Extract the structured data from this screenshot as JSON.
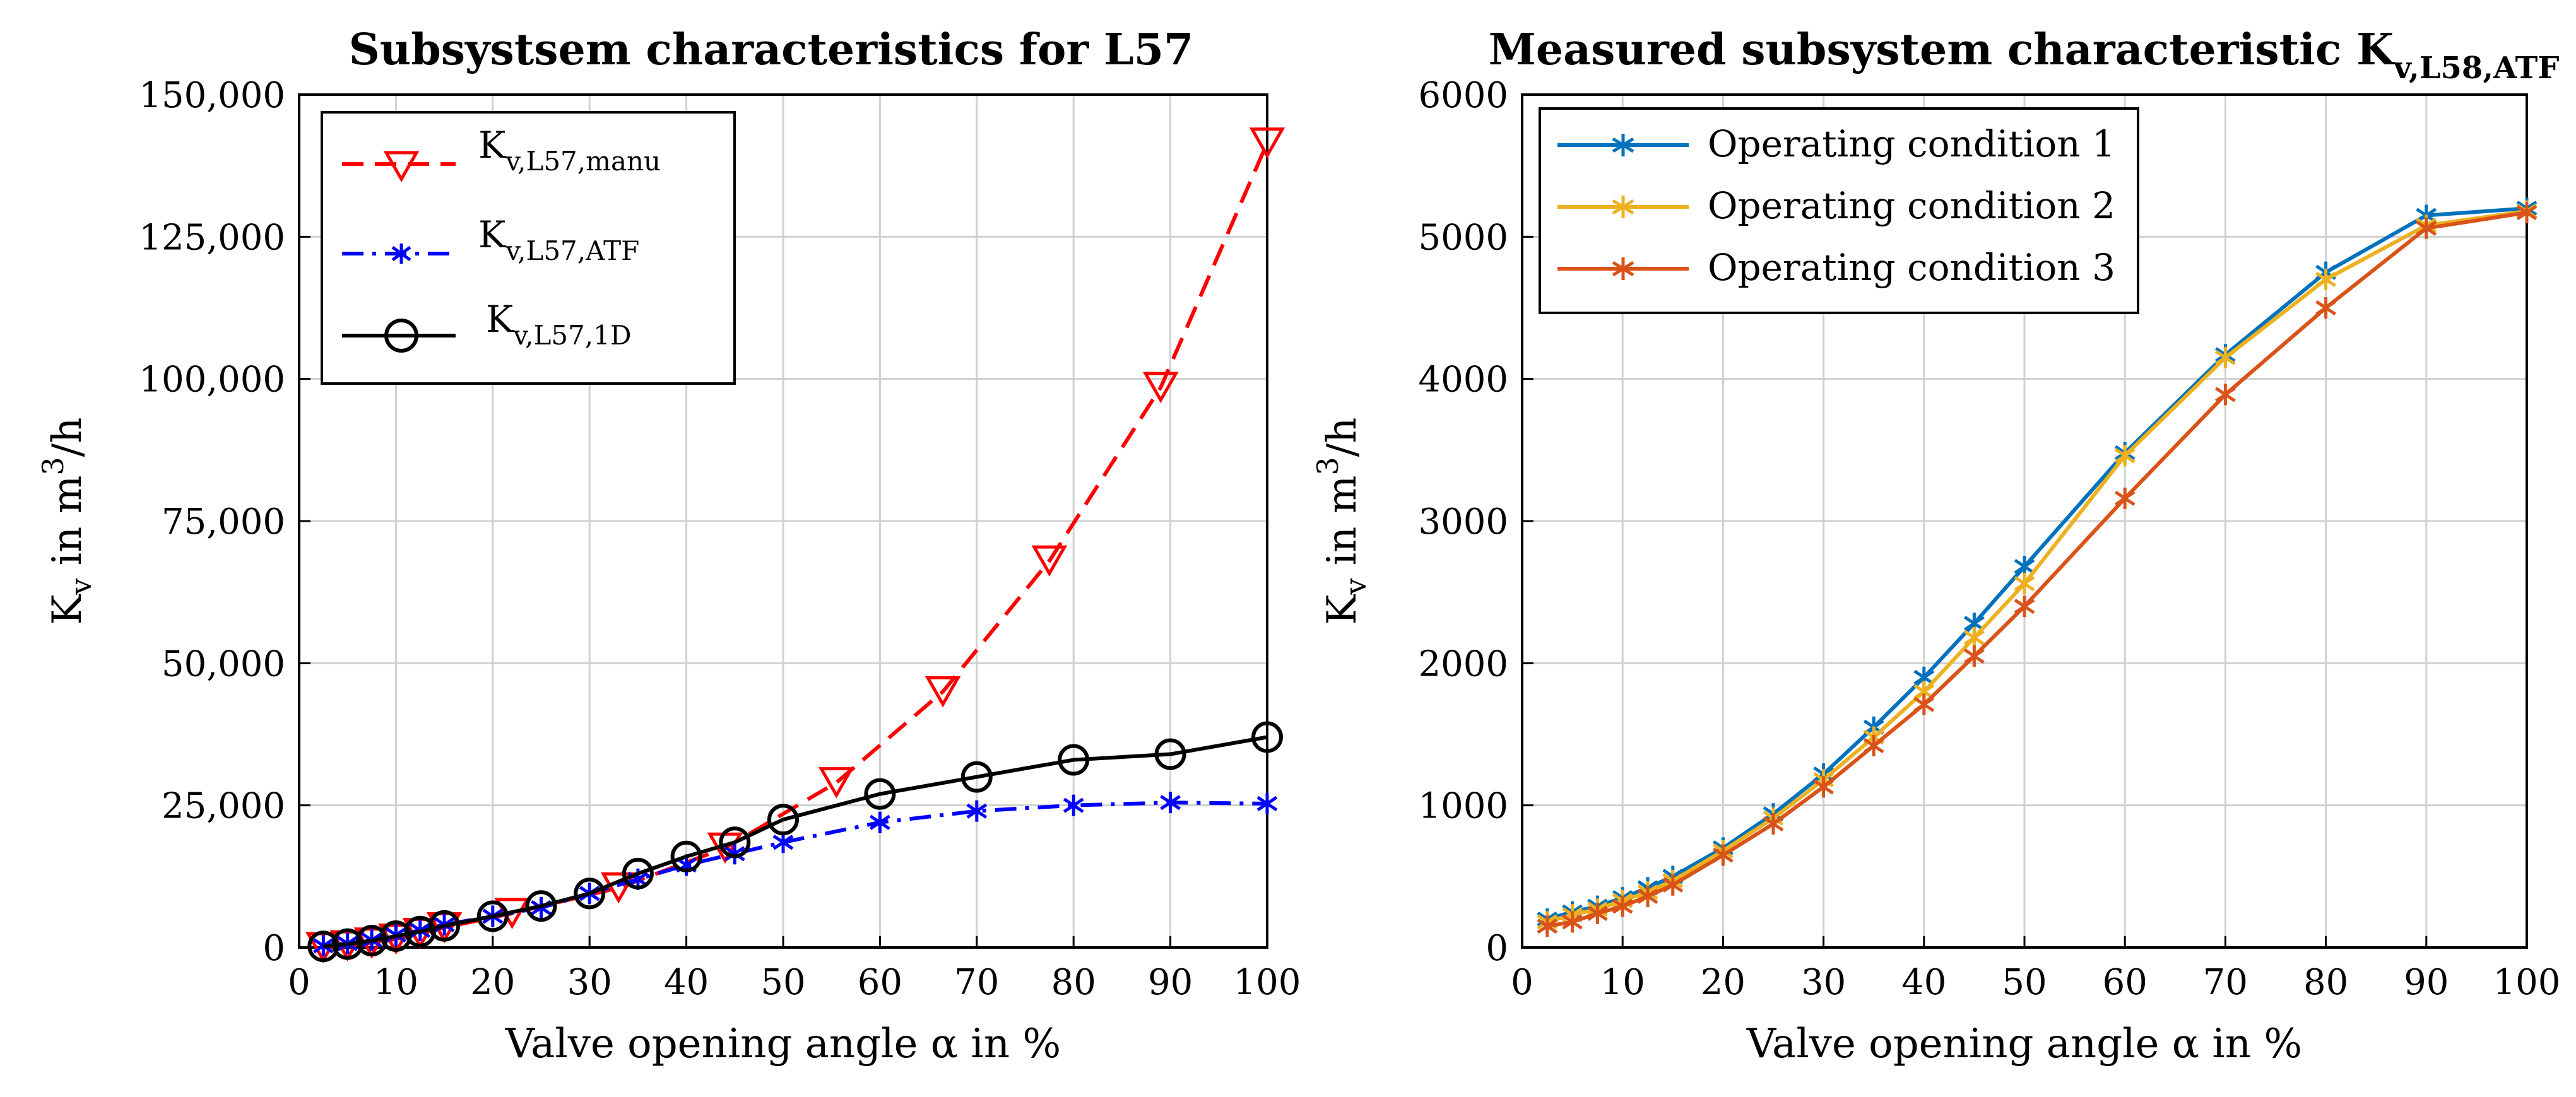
{
  "chart_data": [
    {
      "type": "line",
      "title": "Subsystsem characteristics for L57",
      "xlabel": "Valve opening angle α in %",
      "ylabel_main": "K",
      "ylabel_sub": "v",
      "ylabel_unit_text": " in m",
      "ylabel_exp": "3",
      "ylabel_tail": "/h",
      "xlim": [
        0,
        100
      ],
      "ylim": [
        0,
        150000
      ],
      "xticks": [
        0,
        10,
        20,
        30,
        40,
        50,
        60,
        70,
        80,
        90,
        100
      ],
      "yticks": [
        0,
        25000,
        50000,
        75000,
        100000,
        125000,
        150000
      ],
      "ytick_labels": [
        "0",
        "25,000",
        "50,000",
        "75,000",
        "100,000",
        "125,000",
        "150,000"
      ],
      "grid": true,
      "legend_position": "top-left",
      "series": [
        {
          "name": "K v,L57,manu",
          "legend_main": "K",
          "legend_sub": "v,L57,manu",
          "color": "#ff0000",
          "line_style": "dashed",
          "marker": "triangle-down",
          "x": [
            2.5,
            5,
            7.5,
            10,
            12.5,
            15,
            22,
            33,
            44,
            55.5,
            66.5,
            77.5,
            89,
            100
          ],
          "y": [
            0,
            300,
            800,
            1500,
            2500,
            3500,
            6000,
            10500,
            17500,
            29000,
            45000,
            68000,
            98500,
            141500
          ]
        },
        {
          "name": "K v,L57,ATF",
          "legend_main": "K",
          "legend_sub": "v,L57,ATF",
          "color": "#0000ff",
          "line_style": "dashdot",
          "marker": "asterisk",
          "x": [
            2.5,
            5,
            7.5,
            10,
            12.5,
            15,
            20,
            25,
            30,
            35,
            40,
            45,
            50,
            60,
            70,
            80,
            90,
            100
          ],
          "y": [
            300,
            700,
            1300,
            2200,
            3000,
            4000,
            5500,
            7000,
            9500,
            12000,
            14500,
            16500,
            18500,
            22000,
            24000,
            25000,
            25500,
            25300
          ]
        },
        {
          "name": "K v,L57,1D",
          "legend_main": "K",
          "legend_sub": "v,L57,1D",
          "color": "#000000",
          "line_style": "solid",
          "marker": "circle",
          "x": [
            2.5,
            5,
            7.5,
            10,
            12.5,
            15,
            20,
            25,
            30,
            35,
            40,
            45,
            50,
            60,
            70,
            80,
            90,
            100
          ],
          "y": [
            200,
            600,
            1200,
            2000,
            2800,
            3800,
            5500,
            7300,
            9500,
            13000,
            16000,
            18500,
            22500,
            27000,
            30000,
            33000,
            34000,
            37000
          ]
        }
      ]
    },
    {
      "type": "line",
      "title_main": "Measured subsystem characteristic K",
      "title_sub": "v,L58,ATF",
      "xlabel": "Valve opening angle α in %",
      "ylabel_main": "K",
      "ylabel_sub": "v",
      "ylabel_unit_text": " in m",
      "ylabel_exp": "3",
      "ylabel_tail": "/h",
      "xlim": [
        0,
        100
      ],
      "ylim": [
        0,
        6000
      ],
      "xticks": [
        0,
        10,
        20,
        30,
        40,
        50,
        60,
        70,
        80,
        90,
        100
      ],
      "yticks": [
        0,
        1000,
        2000,
        3000,
        4000,
        5000,
        6000
      ],
      "ytick_labels": [
        "0",
        "1000",
        "2000",
        "3000",
        "4000",
        "5000",
        "6000"
      ],
      "grid": true,
      "legend_position": "top-left",
      "series": [
        {
          "name": "Operating condition 1",
          "color": "#0072bd",
          "line_style": "solid",
          "marker": "asterisk",
          "x": [
            2.5,
            5,
            7.5,
            10,
            12.5,
            15,
            20,
            25,
            30,
            35,
            40,
            45,
            50,
            60,
            70,
            80,
            90,
            100
          ],
          "y": [
            200,
            250,
            290,
            350,
            420,
            500,
            700,
            940,
            1220,
            1550,
            1900,
            2280,
            2680,
            3480,
            4170,
            4750,
            5150,
            5200
          ]
        },
        {
          "name": "Operating condition 2",
          "color": "#edb120",
          "line_style": "solid",
          "marker": "asterisk",
          "x": [
            2.5,
            5,
            7.5,
            10,
            12.5,
            15,
            20,
            25,
            30,
            35,
            40,
            45,
            50,
            60,
            70,
            80,
            90,
            100
          ],
          "y": [
            180,
            230,
            270,
            330,
            390,
            470,
            680,
            910,
            1180,
            1480,
            1800,
            2180,
            2560,
            3460,
            4150,
            4700,
            5080,
            5180
          ]
        },
        {
          "name": "Operating condition 3",
          "color": "#d95319",
          "line_style": "solid",
          "marker": "asterisk",
          "x": [
            2.5,
            5,
            7.5,
            10,
            12.5,
            15,
            20,
            25,
            30,
            35,
            40,
            45,
            50,
            60,
            70,
            80,
            90,
            100
          ],
          "y": [
            150,
            180,
            240,
            290,
            360,
            440,
            650,
            870,
            1130,
            1420,
            1710,
            2050,
            2400,
            3160,
            3890,
            4500,
            5060,
            5170
          ]
        }
      ]
    }
  ]
}
